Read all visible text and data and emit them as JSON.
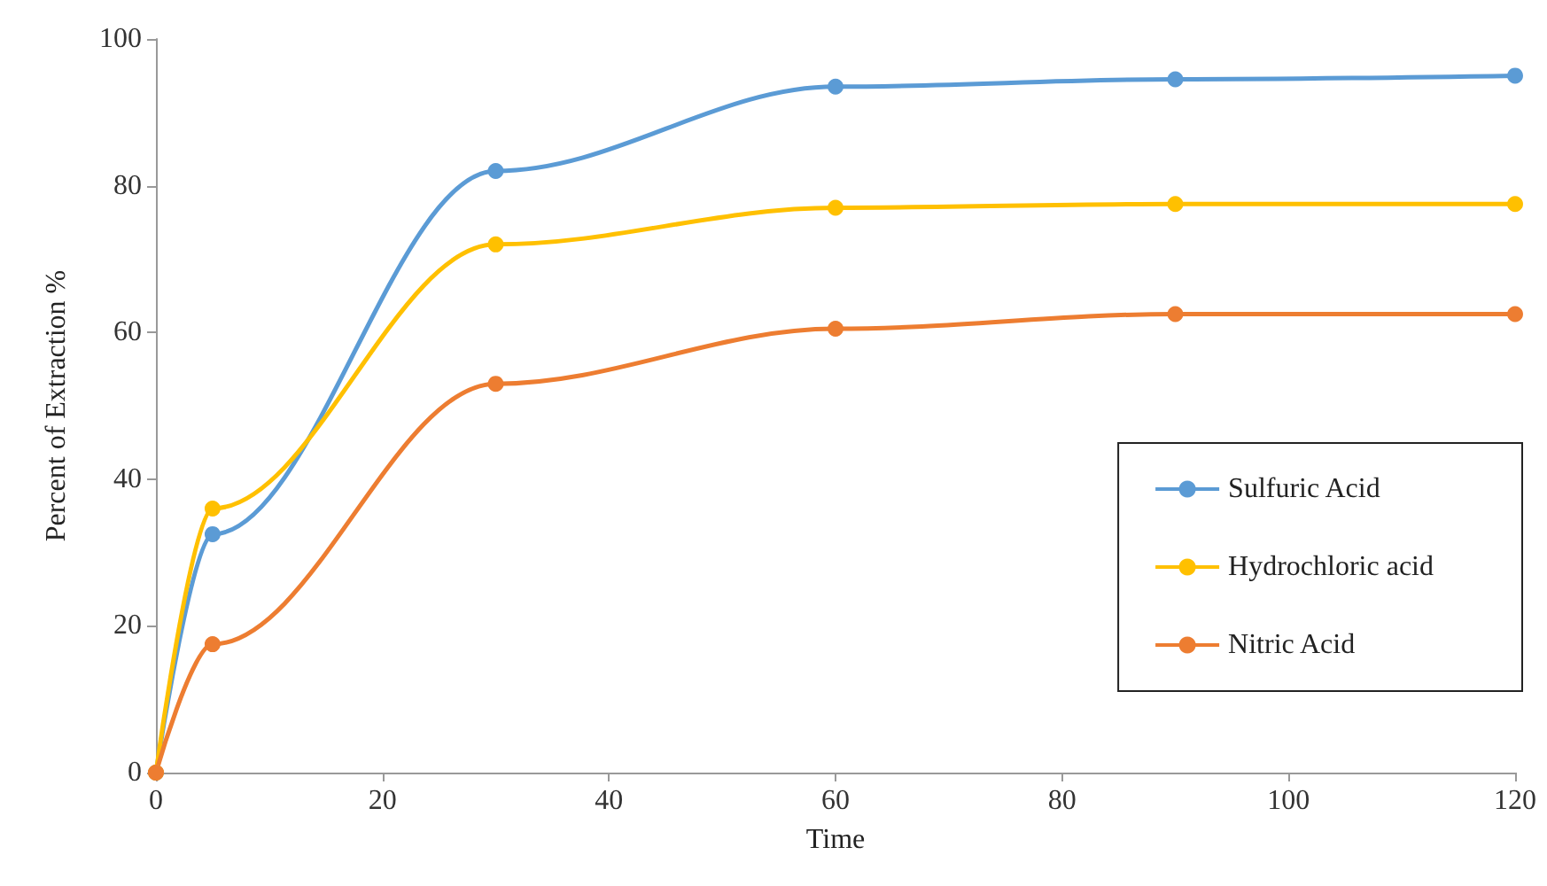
{
  "chart_data": {
    "type": "line",
    "xlabel": "Time",
    "ylabel": "Percent of Extraction %",
    "x": [
      0,
      5,
      30,
      60,
      90,
      120
    ],
    "series": [
      {
        "name": "Sulfuric Acid",
        "color": "#5b9bd5",
        "values": [
          0,
          32.5,
          82,
          93.5,
          94.5,
          95
        ]
      },
      {
        "name": "Hydrochloric acid",
        "color": "#ffc000",
        "values": [
          0,
          36,
          72,
          77,
          77.5,
          77.5
        ]
      },
      {
        "name": "Nitric Acid",
        "color": "#ed7d31",
        "values": [
          0,
          17.5,
          53,
          60.5,
          62.5,
          62.5
        ]
      }
    ],
    "xlim": [
      0,
      120
    ],
    "xticks": [
      0,
      20,
      40,
      60,
      80,
      100,
      120
    ],
    "ylim": [
      0,
      100
    ],
    "yticks": [
      0,
      20,
      40,
      60,
      80,
      100
    ],
    "grid": false,
    "legend": "right",
    "marker": "circle",
    "line_style": "solid"
  }
}
